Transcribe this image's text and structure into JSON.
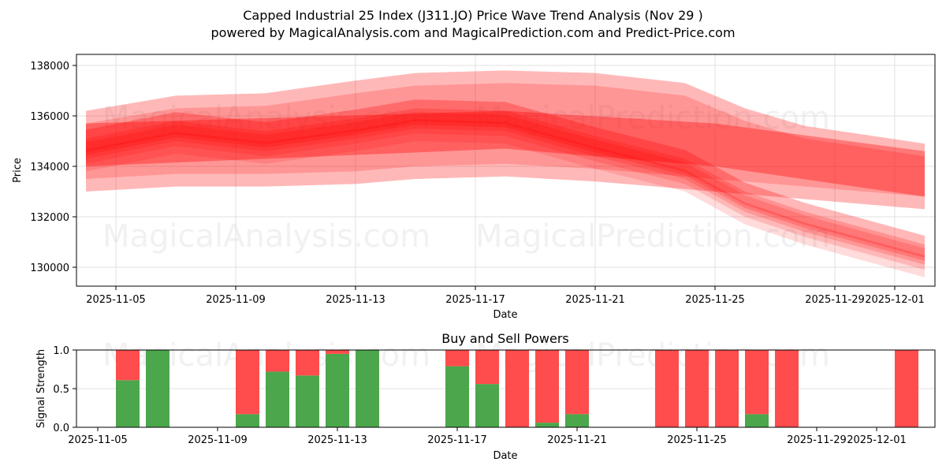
{
  "header": {
    "title": "Capped Industrial 25 Index (J311.JO) Price Wave Trend Analysis (Nov 29 )",
    "subtitle": "powered by MagicalAnalysis.com and MagicalPrediction.com and Predict-Price.com"
  },
  "watermarks": [
    "MagicalAnalysis.com",
    "MagicalPrediction.com"
  ],
  "colors": {
    "band": "#ff0000",
    "buy": "#4ca64c",
    "sell": "#ff4c4c",
    "grid": "#e0e0e0"
  },
  "chart_data": [
    {
      "type": "area",
      "title": "Capped Industrial 25 Index (J311.JO) Price Wave Trend Analysis (Nov 29 )",
      "xlabel": "Date",
      "ylabel": "Price",
      "x_ticks": [
        "2025-11-05",
        "2025-11-09",
        "2025-11-13",
        "2025-11-17",
        "2025-11-21",
        "2025-11-25",
        "2025-11-29",
        "2025-12-01"
      ],
      "y_ticks": [
        130000,
        132000,
        134000,
        136000,
        138000
      ],
      "ylim": [
        129300,
        138400
      ],
      "grid": true,
      "description": "Overlapping translucent red price-wave bands; price drifts ~135000-136000 through Nov 18 then declines toward ~130000-134000 by Dec 1",
      "series": [
        {
          "name": "outer-band-upper",
          "x": [
            "2025-11-04",
            "2025-11-07",
            "2025-11-10",
            "2025-11-13",
            "2025-11-15",
            "2025-11-18",
            "2025-11-21",
            "2025-11-24",
            "2025-11-26",
            "2025-11-28",
            "2025-12-02"
          ],
          "values": [
            136200,
            136800,
            136900,
            137400,
            137700,
            137800,
            137700,
            137300,
            136300,
            135600,
            134900
          ]
        },
        {
          "name": "outer-band-lower",
          "x": [
            "2025-11-04",
            "2025-11-07",
            "2025-11-10",
            "2025-11-13",
            "2025-11-15",
            "2025-11-18",
            "2025-11-21",
            "2025-11-24",
            "2025-11-26",
            "2025-11-28",
            "2025-12-02"
          ],
          "values": [
            133000,
            133200,
            133200,
            133300,
            133500,
            133600,
            133400,
            133100,
            132900,
            132700,
            132300
          ]
        },
        {
          "name": "core-wave",
          "x": [
            "2025-11-04",
            "2025-11-07",
            "2025-11-10",
            "2025-11-13",
            "2025-11-15",
            "2025-11-18",
            "2025-11-21",
            "2025-11-24",
            "2025-11-26",
            "2025-11-28",
            "2025-12-02"
          ],
          "values": [
            134700,
            135400,
            135000,
            135500,
            135900,
            135800,
            134800,
            133900,
            132600,
            131800,
            130500
          ]
        },
        {
          "name": "trend-band-upper",
          "x": [
            "2025-11-04",
            "2025-11-18",
            "2025-11-25",
            "2025-12-02"
          ],
          "values": [
            135700,
            136200,
            135700,
            134600
          ]
        },
        {
          "name": "trend-band-lower",
          "x": [
            "2025-11-04",
            "2025-11-18",
            "2025-11-25",
            "2025-12-02"
          ],
          "values": [
            134000,
            134700,
            134000,
            132800
          ]
        }
      ]
    },
    {
      "type": "bar",
      "title": "Buy and Sell Powers",
      "xlabel": "Date",
      "ylabel": "Signal Strength",
      "ylim": [
        0,
        1
      ],
      "y_ticks": [
        0.0,
        0.5,
        1.0
      ],
      "x_ticks": [
        "2025-11-05",
        "2025-11-09",
        "2025-11-13",
        "2025-11-17",
        "2025-11-21",
        "2025-11-25",
        "2025-11-29",
        "2025-12-01"
      ],
      "grid": true,
      "stacked": true,
      "categories": [
        "2025-11-06",
        "2025-11-07",
        "2025-11-10",
        "2025-11-11",
        "2025-11-12",
        "2025-11-13",
        "2025-11-14",
        "2025-11-17",
        "2025-11-18",
        "2025-11-19",
        "2025-11-20",
        "2025-11-21",
        "2025-11-24",
        "2025-11-25",
        "2025-11-26",
        "2025-11-27",
        "2025-11-28",
        "2025-12-02"
      ],
      "series": [
        {
          "name": "Buy",
          "color": "#4ca64c",
          "values": [
            0.61,
            1.0,
            0.17,
            0.72,
            0.67,
            0.95,
            1.0,
            0.79,
            0.56,
            0.0,
            0.06,
            0.17,
            0.0,
            0.0,
            0.0,
            0.17,
            0.0,
            0.0
          ]
        },
        {
          "name": "Sell",
          "color": "#ff4c4c",
          "values": [
            0.39,
            0.0,
            0.83,
            0.28,
            0.33,
            0.05,
            0.0,
            0.21,
            0.44,
            1.0,
            0.94,
            0.83,
            1.0,
            1.0,
            1.0,
            0.83,
            1.0,
            1.0
          ]
        }
      ]
    }
  ]
}
